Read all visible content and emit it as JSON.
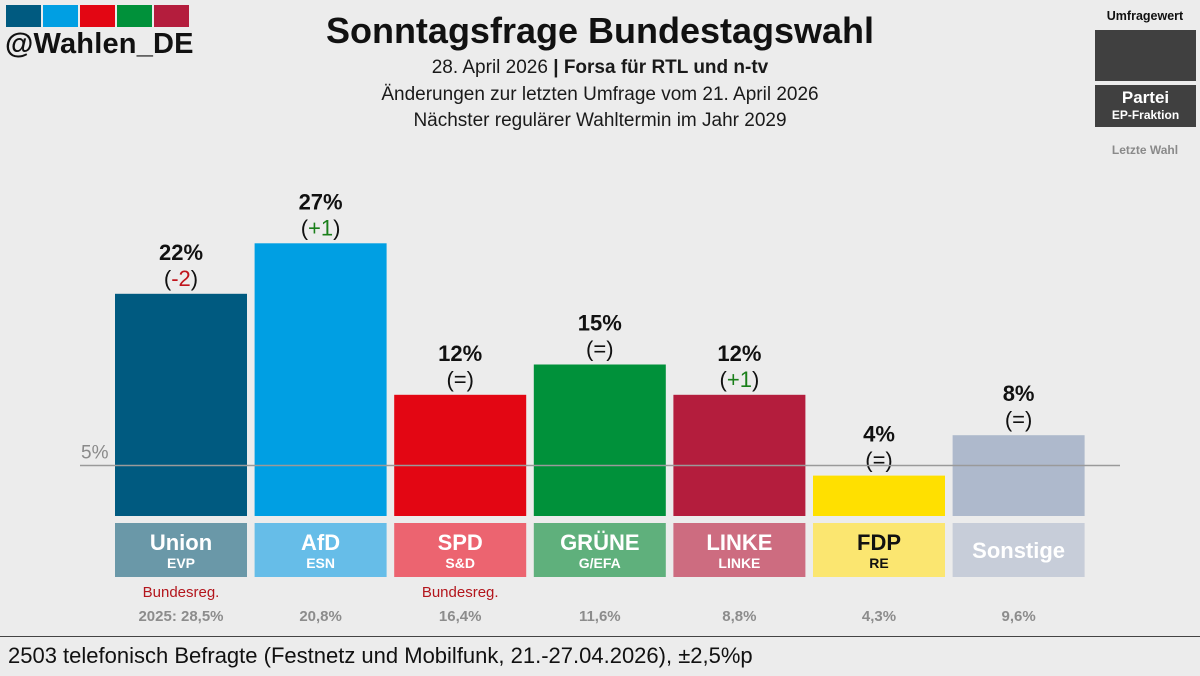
{
  "header": {
    "handle": "@Wahlen_DE",
    "title": "Sonntagsfrage Bundestagswahl",
    "date": "28. April 2026",
    "institute": "Forsa für RTL und n-tv",
    "changes_note": "Änderungen zur letzten Umfrage vom 21. April 2026",
    "next_election": "Nächster regulärer Wahltermin im Jahr 2029",
    "logo_colors": [
      "#005a80",
      "#009fe3",
      "#e30613",
      "#00913a",
      "#b41d3d"
    ]
  },
  "legend": {
    "poll_value": "Umfragewert",
    "party": "Partei",
    "ep_group": "EP-Fraktion",
    "last_election": "Letzte Wahl"
  },
  "chart_data": {
    "type": "bar",
    "ylim": [
      0,
      30
    ],
    "threshold": 5,
    "threshold_label": "5%",
    "categories": [
      "Union",
      "AfD",
      "SPD",
      "GRÜNE",
      "LINKE",
      "FDP",
      "Sonstige"
    ],
    "values": [
      22,
      27,
      12,
      15,
      12,
      4,
      8
    ],
    "value_labels": [
      "22%",
      "27%",
      "12%",
      "15%",
      "12%",
      "4%",
      "8%"
    ],
    "changes": [
      "(-2)",
      "(+1)",
      "(=)",
      "(=)",
      "(+1)",
      "(=)",
      "(=)"
    ],
    "ep_groups": [
      "EVP",
      "ESN",
      "S&D",
      "G/EFA",
      "LINKE",
      "RE",
      ""
    ],
    "bar_colors": [
      "#005a80",
      "#009fe3",
      "#e30613",
      "#00913a",
      "#b41d3d",
      "#ffe000",
      "#aeb9cc"
    ],
    "label_colors": [
      "#6a98a8",
      "#66bde8",
      "#ec6470",
      "#5fb07c",
      "#cd6c80",
      "#fbe670",
      "#c7cdd9"
    ],
    "label_text_colors": [
      "#ffffff",
      "#ffffff",
      "#ffffff",
      "#ffffff",
      "#ffffff",
      "#111111",
      "#ffffff"
    ],
    "last_election": [
      "2025: 28,5%",
      "20,8%",
      "16,4%",
      "11,6%",
      "8,8%",
      "4,3%",
      "9,6%"
    ],
    "government": [
      "Bundesreg.",
      "",
      "Bundesreg.",
      "",
      "",
      "",
      ""
    ]
  },
  "footer": {
    "note": "2503 telefonisch Befragte (Festnetz und Mobilfunk, 21.-27.04.2026), ±2,5%p"
  }
}
